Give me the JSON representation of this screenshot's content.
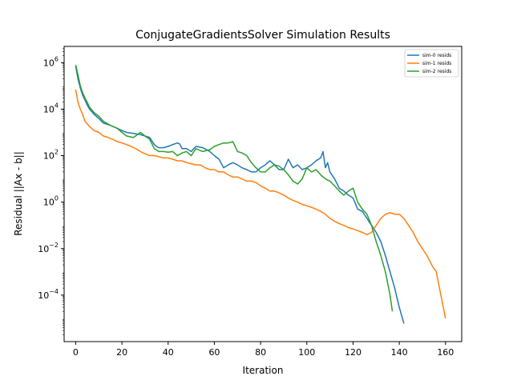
{
  "chart_data": {
    "type": "line",
    "title": "ConjugateGradientsSolver Simulation Results",
    "xlabel": "Iteration",
    "ylabel": "Residual ||Ax - b||",
    "xlim": [
      -5,
      167
    ],
    "ylim": [
      1e-06,
      5000000.0
    ],
    "yscale": "log",
    "xticks": [
      0,
      20,
      40,
      60,
      80,
      100,
      120,
      140,
      160
    ],
    "yticks": [
      {
        "value": 1000000.0,
        "base": "10",
        "exp": "6"
      },
      {
        "value": 10000.0,
        "base": "10",
        "exp": "4"
      },
      {
        "value": 100.0,
        "base": "10",
        "exp": "2"
      },
      {
        "value": 1,
        "base": "10",
        "exp": "0"
      },
      {
        "value": 0.01,
        "base": "10",
        "exp": "−2"
      },
      {
        "value": 0.0001,
        "base": "10",
        "exp": "−4"
      }
    ],
    "legend_position": "top-right",
    "grid": false,
    "series": [
      {
        "name": "sim-0 resids",
        "color": "#1f77b4",
        "x": [
          0,
          1,
          2,
          3,
          4,
          5,
          6,
          8,
          10,
          12,
          15,
          18,
          20,
          22,
          25,
          28,
          30,
          32,
          34,
          35,
          36,
          38,
          40,
          42,
          44,
          45,
          46,
          48,
          50,
          52,
          55,
          58,
          60,
          62,
          64,
          66,
          68,
          70,
          72,
          74,
          76,
          78,
          80,
          82,
          84,
          86,
          88,
          90,
          92,
          94,
          96,
          98,
          100,
          102,
          104,
          106,
          107,
          108,
          109,
          110,
          112,
          114,
          116,
          118,
          120,
          122,
          124,
          126,
          128,
          130,
          132,
          134,
          136,
          138,
          140,
          142
        ],
        "y": [
          700000,
          200000,
          80000,
          40000,
          25000,
          15000,
          10000,
          6000,
          4000,
          2500,
          2000,
          1500,
          1200,
          1000,
          900,
          800,
          700,
          600,
          300,
          250,
          220,
          220,
          250,
          300,
          350,
          320,
          200,
          200,
          150,
          250,
          220,
          150,
          100,
          70,
          30,
          40,
          50,
          40,
          30,
          25,
          20,
          20,
          30,
          40,
          60,
          40,
          25,
          25,
          70,
          30,
          40,
          25,
          30,
          40,
          60,
          80,
          150,
          30,
          50,
          20,
          10,
          4,
          3,
          2,
          1.5,
          0.5,
          0.4,
          0.2,
          0.1,
          0.05,
          0.02,
          0.005,
          0.001,
          0.0002,
          3e-05,
          6e-06
        ]
      },
      {
        "name": "sim-1 resids",
        "color": "#ff7f0e",
        "x": [
          0,
          1,
          2,
          3,
          4,
          6,
          8,
          10,
          12,
          14,
          16,
          18,
          20,
          22,
          24,
          26,
          28,
          30,
          32,
          34,
          36,
          38,
          40,
          42,
          44,
          46,
          48,
          50,
          52,
          54,
          56,
          58,
          60,
          62,
          64,
          66,
          68,
          70,
          72,
          74,
          76,
          78,
          80,
          82,
          84,
          86,
          88,
          90,
          92,
          94,
          96,
          98,
          100,
          102,
          104,
          106,
          108,
          110,
          112,
          114,
          116,
          118,
          120,
          122,
          124,
          126,
          128,
          130,
          132,
          134,
          136,
          138,
          140,
          142,
          144,
          146,
          148,
          150,
          152,
          154,
          156,
          158,
          160
        ],
        "y": [
          70000,
          20000,
          10000,
          6000,
          3000,
          1800,
          1200,
          1000,
          700,
          600,
          500,
          400,
          350,
          300,
          250,
          200,
          150,
          120,
          100,
          100,
          90,
          80,
          80,
          70,
          60,
          60,
          50,
          45,
          40,
          40,
          30,
          25,
          25,
          20,
          20,
          15,
          12,
          12,
          10,
          8,
          8,
          7,
          5,
          4,
          3,
          3,
          2.5,
          2,
          1.5,
          1.2,
          1.0,
          0.8,
          0.7,
          0.6,
          0.5,
          0.4,
          0.3,
          0.2,
          0.15,
          0.12,
          0.1,
          0.08,
          0.07,
          0.06,
          0.05,
          0.04,
          0.05,
          0.1,
          0.2,
          0.3,
          0.35,
          0.3,
          0.3,
          0.2,
          0.1,
          0.05,
          0.02,
          0.01,
          0.005,
          0.002,
          0.001,
          0.0001,
          1e-05
        ]
      },
      {
        "name": "sim-2 resids",
        "color": "#2ca02c",
        "x": [
          0,
          1,
          2,
          3,
          4,
          5,
          6,
          8,
          10,
          12,
          15,
          18,
          20,
          22,
          25,
          28,
          30,
          32,
          34,
          36,
          38,
          40,
          42,
          44,
          46,
          48,
          50,
          52,
          55,
          58,
          60,
          62,
          64,
          66,
          68,
          70,
          72,
          74,
          76,
          78,
          80,
          82,
          84,
          86,
          88,
          90,
          92,
          94,
          96,
          98,
          100,
          102,
          104,
          106,
          108,
          110,
          112,
          114,
          116,
          118,
          120,
          122,
          124,
          126,
          128,
          130,
          132,
          134,
          136,
          137
        ],
        "y": [
          800000,
          300000,
          100000,
          50000,
          30000,
          20000,
          12000,
          7000,
          5000,
          3000,
          2000,
          1500,
          1000,
          700,
          600,
          1000,
          700,
          500,
          200,
          150,
          150,
          140,
          150,
          100,
          130,
          150,
          100,
          200,
          150,
          180,
          250,
          300,
          350,
          350,
          400,
          150,
          130,
          100,
          50,
          30,
          20,
          20,
          30,
          40,
          35,
          25,
          15,
          8,
          6,
          10,
          30,
          20,
          25,
          15,
          10,
          8,
          5,
          3,
          2,
          3,
          4,
          1,
          0.5,
          0.3,
          0.1,
          0.02,
          0.005,
          0.001,
          0.0001,
          2e-05
        ]
      }
    ]
  }
}
